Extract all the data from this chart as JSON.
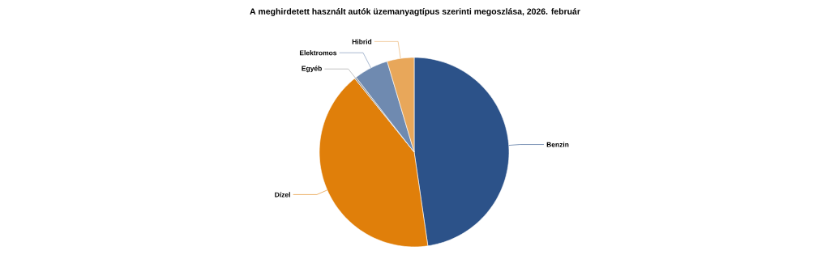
{
  "chart_data": {
    "type": "pie",
    "title": "A meghirdetett használt autók üzemanyagtípus szerinti megoszlása, 2026. február",
    "categories": [
      "Benzin",
      "Dízel",
      "Egyéb",
      "Elektromos",
      "Hibrid"
    ],
    "values": [
      47.7,
      41.5,
      0.3,
      5.9,
      4.6
    ],
    "colors": [
      "#2c5289",
      "#e07f0a",
      "#9a9a9a",
      "#6f8ab0",
      "#e8a75a"
    ]
  }
}
